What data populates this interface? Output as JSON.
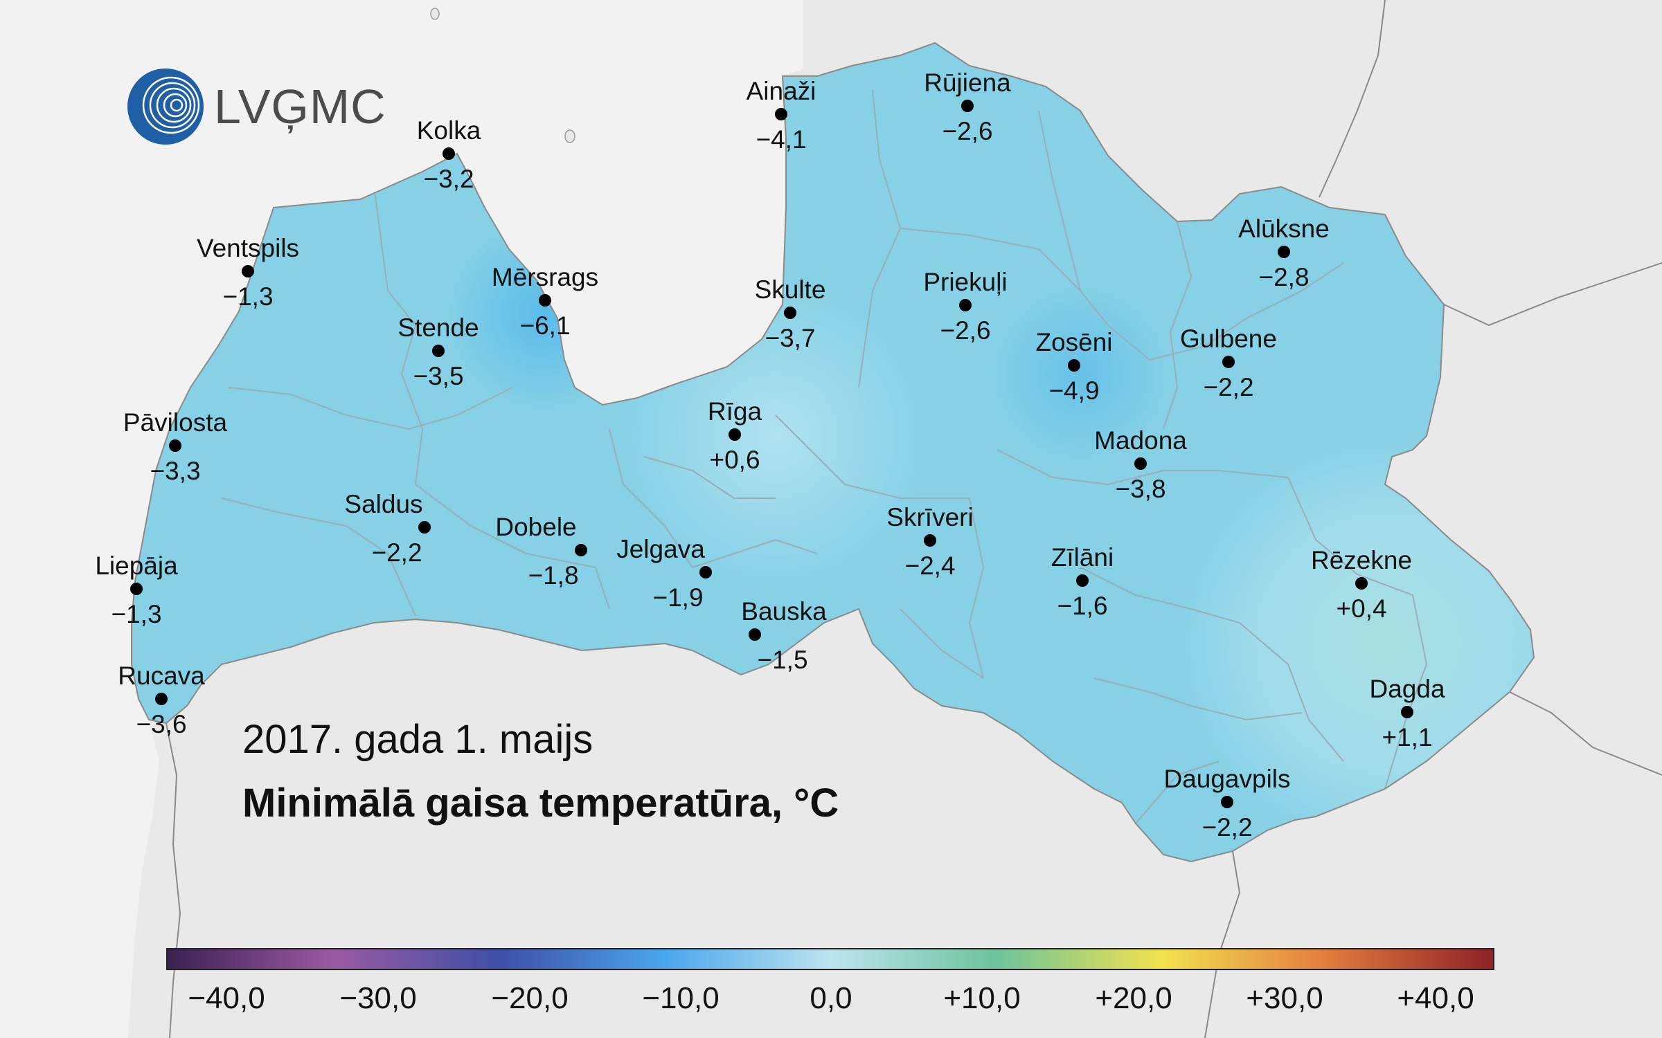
{
  "logo": {
    "text": "LVĢMC",
    "icon": "lvgmc-logo-icon"
  },
  "date": "2017. gada 1. maijs",
  "title": "Minimālā gaisa temperatūra, °C",
  "colorbar": {
    "ticks": [
      "−40,0",
      "−30,0",
      "−20,0",
      "−10,0",
      "0,0",
      "+10,0",
      "+20,0",
      "+30,0",
      "+40,0"
    ],
    "colors": [
      "#3a2150",
      "#9b5aa2",
      "#3e4fa6",
      "#4aa6ec",
      "#bde4ef",
      "#6cc39c",
      "#f2e24e",
      "#e37b3f",
      "#8e2226"
    ]
  },
  "colors": {
    "background": "#e9e9e9",
    "sea": "#f2f2f2",
    "land": "#86d1e6",
    "borders": "#9aaeb8"
  },
  "stations": [
    {
      "name": "Kolka",
      "value": "−3,2"
    },
    {
      "name": "Ainaži",
      "value": "−4,1"
    },
    {
      "name": "Rūjiena",
      "value": "−2,6"
    },
    {
      "name": "Ventspils",
      "value": "−1,3"
    },
    {
      "name": "Mērsrags",
      "value": "−6,1"
    },
    {
      "name": "Skulte",
      "value": "−3,7"
    },
    {
      "name": "Priekuļi",
      "value": "−2,6"
    },
    {
      "name": "Alūksne",
      "value": "−2,8"
    },
    {
      "name": "Stende",
      "value": "−3,5"
    },
    {
      "name": "Zosēni",
      "value": "−4,9"
    },
    {
      "name": "Gulbene",
      "value": "−2,2"
    },
    {
      "name": "Pāvilosta",
      "value": "−3,3"
    },
    {
      "name": "Rīga",
      "value": "+0,6"
    },
    {
      "name": "Madona",
      "value": "−3,8"
    },
    {
      "name": "Saldus",
      "value": "−2,2"
    },
    {
      "name": "Dobele",
      "value": "−1,8"
    },
    {
      "name": "Skrīveri",
      "value": "−2,4"
    },
    {
      "name": "Jelgava",
      "value": "−1,9"
    },
    {
      "name": "Zīlāni",
      "value": "−1,6"
    },
    {
      "name": "Rēzekne",
      "value": "+0,4"
    },
    {
      "name": "Liepāja",
      "value": "−1,3"
    },
    {
      "name": "Bauska",
      "value": "−1,5"
    },
    {
      "name": "Rucava",
      "value": "−3,6"
    },
    {
      "name": "Dagda",
      "value": "+1,1"
    },
    {
      "name": "Daugavpils",
      "value": "−2,2"
    }
  ]
}
